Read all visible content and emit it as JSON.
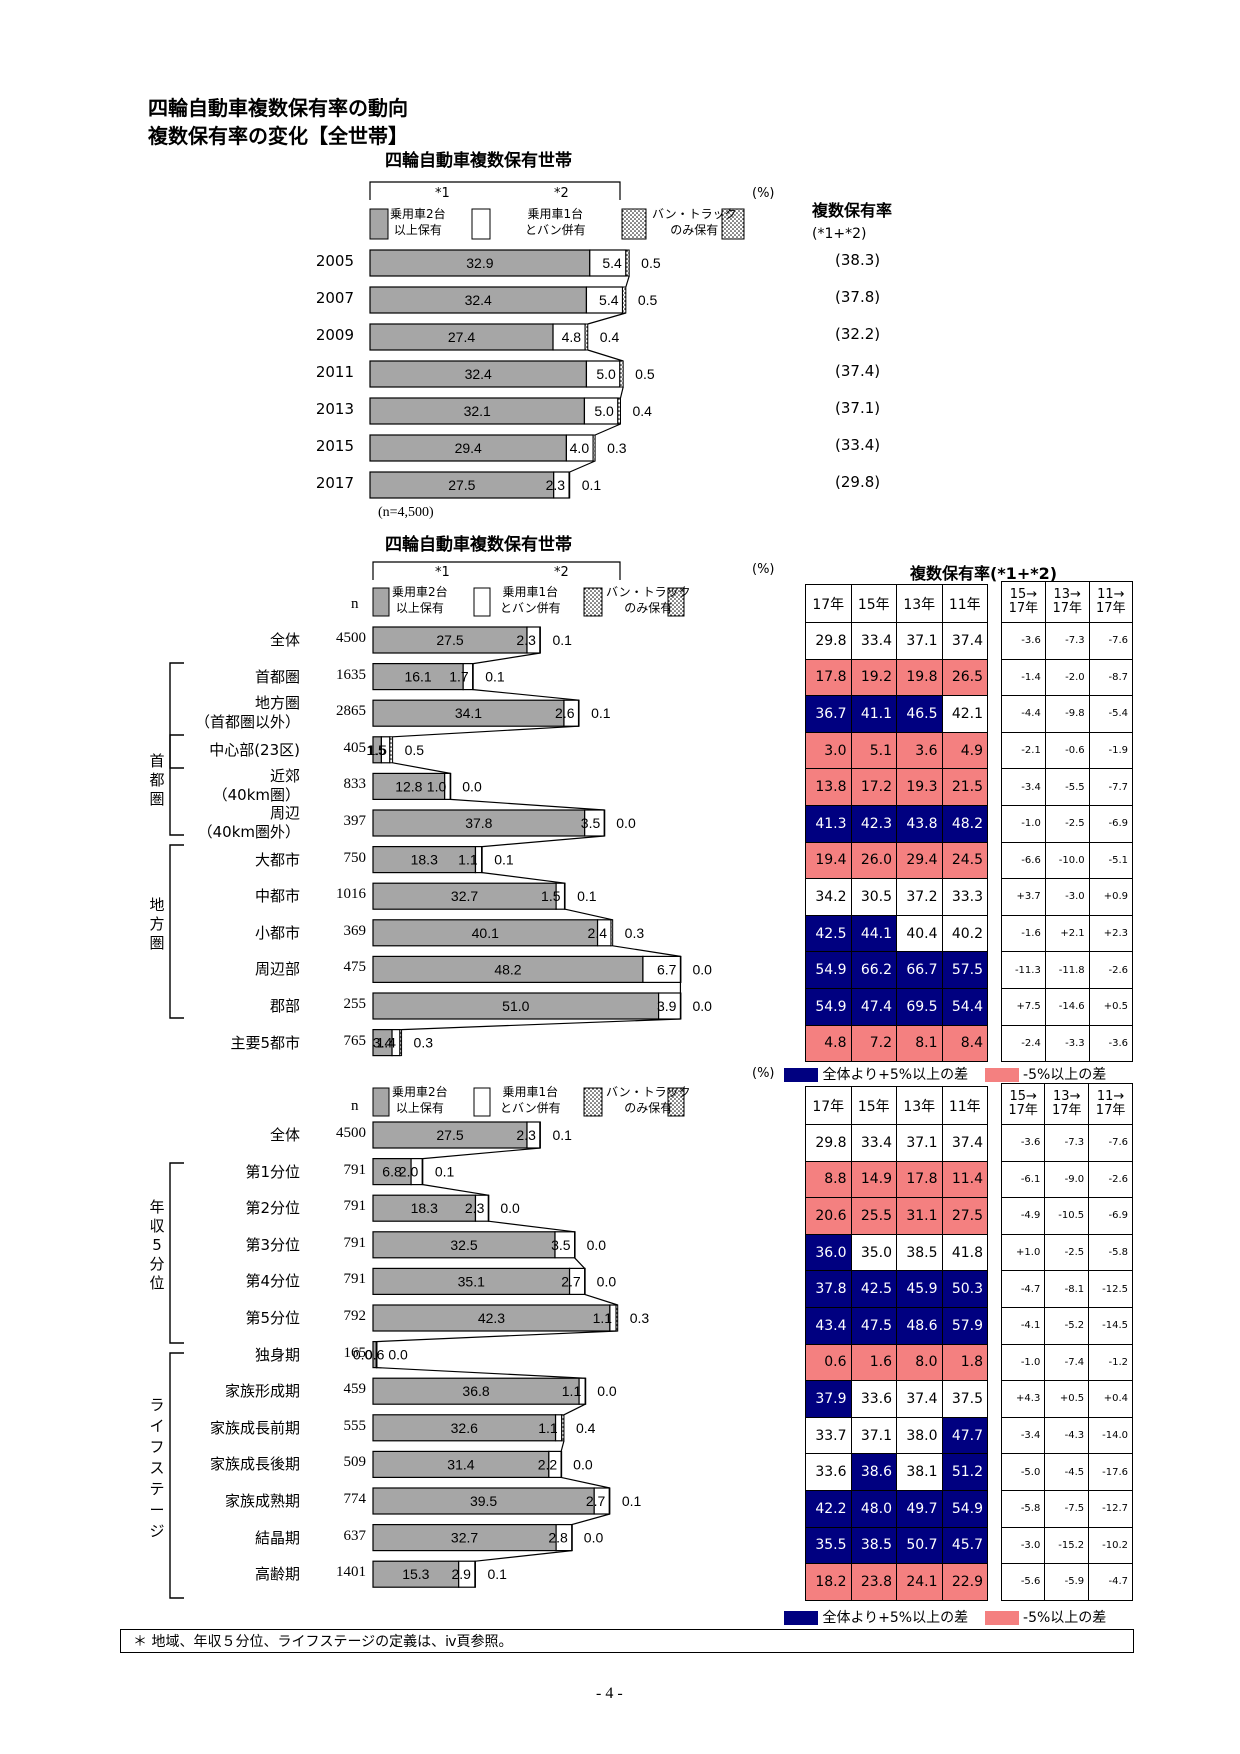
{
  "title1": "四輪自動車複数保有率の動向",
  "title2": "複数保有率の変化【全世帯】",
  "section_title": "四輪自動車複数保有世帯",
  "star1": "*1",
  "star2": "*2",
  "pct_unit": "(%)",
  "legend": {
    "gray": [
      "乗用車2台",
      "以上保有"
    ],
    "white": [
      "乗用車1台",
      "とバン併有"
    ],
    "dot": [
      "バン・トラック",
      "のみ保有"
    ]
  },
  "rate_header": [
    "複数保有率",
    "(*1+*2)"
  ],
  "rate_header_inline": "複数保有率(*1+*2)",
  "n_label": "n",
  "n_note": "(n=4,500)",
  "col_years": [
    "17年",
    "15年",
    "13年",
    "11年"
  ],
  "diff_headers": [
    [
      "15→",
      "17年"
    ],
    [
      "13→",
      "17年"
    ],
    [
      "11→",
      "17年"
    ]
  ],
  "table_legend": {
    "blue": "全体より+5%以上の差",
    "pink": "-5%以上の差"
  },
  "group_labels": {
    "shutoken": "首都圏",
    "chiho": "地方圏",
    "nenshu": "年収5分位",
    "life": "ライフステージ"
  },
  "footer": "＊ 地域、年収５分位、ライフステージの定義は、ⅳ頁参照。",
  "page_number": "- 4 -",
  "colors": {
    "gray": "#A6A6A6",
    "blue": "#000080",
    "pink": "#F48080"
  },
  "chart_data": [
    {
      "type": "bar",
      "title": "四輪自動車複数保有世帯",
      "categories": [
        "2005",
        "2007",
        "2009",
        "2011",
        "2013",
        "2015",
        "2017"
      ],
      "series": [
        {
          "name": "乗用車2台以上保有",
          "values": [
            32.9,
            32.4,
            27.4,
            32.4,
            32.1,
            29.4,
            27.5
          ]
        },
        {
          "name": "乗用車1台とバン併有",
          "values": [
            5.4,
            5.4,
            4.8,
            5.0,
            5.0,
            4.0,
            2.3
          ]
        },
        {
          "name": "バン・トラックのみ保有",
          "values": [
            0.5,
            0.5,
            0.4,
            0.5,
            0.4,
            0.3,
            0.1
          ]
        }
      ],
      "rate": [
        "(38.3)",
        "(37.8)",
        "(32.2)",
        "(37.4)",
        "(37.1)",
        "(33.4)",
        "(29.8)"
      ],
      "ylabel": "(%)"
    },
    {
      "type": "bar",
      "title": "四輪自動車複数保有世帯",
      "rows": [
        {
          "label": "全体",
          "n": "4500",
          "v": [
            27.5,
            2.3,
            0.1
          ],
          "rates": [
            "29.8",
            "33.4",
            "37.1",
            "37.4"
          ],
          "c": [
            "",
            "",
            "",
            ""
          ],
          "diffs": [
            "-3.6",
            "-7.3",
            "-7.6"
          ]
        },
        {
          "label": "首都圏",
          "n": "1635",
          "v": [
            16.1,
            1.7,
            0.1
          ],
          "rates": [
            "17.8",
            "19.2",
            "19.8",
            "26.5"
          ],
          "c": [
            "p",
            "p",
            "p",
            "p"
          ],
          "diffs": [
            "-1.4",
            "-2.0",
            "-8.7"
          ]
        },
        {
          "label": "地方圏",
          "label2": "（首都圏以外）",
          "n": "2865",
          "v": [
            34.1,
            2.6,
            0.1
          ],
          "rates": [
            "36.7",
            "41.1",
            "46.5",
            "42.1"
          ],
          "c": [
            "b",
            "b",
            "b",
            ""
          ],
          "diffs": [
            "-4.4",
            "-9.8",
            "-5.4"
          ]
        },
        {
          "label": "中心部(23区)",
          "n": "405",
          "v": [
            1.5,
            1.5,
            0.5
          ],
          "rates": [
            "3.0",
            "5.1",
            "3.6",
            "4.9"
          ],
          "c": [
            "p",
            "p",
            "p",
            "p"
          ],
          "diffs": [
            "-2.1",
            "-0.6",
            "-1.9"
          ]
        },
        {
          "label": "近郊",
          "label2": "（40km圏）",
          "n": "833",
          "v": [
            12.8,
            1.0,
            0.0
          ],
          "rates": [
            "13.8",
            "17.2",
            "19.3",
            "21.5"
          ],
          "c": [
            "p",
            "p",
            "p",
            "p"
          ],
          "diffs": [
            "-3.4",
            "-5.5",
            "-7.7"
          ]
        },
        {
          "label": "周辺",
          "label2": "（40km圏外）",
          "n": "397",
          "v": [
            37.8,
            3.5,
            0.0
          ],
          "rates": [
            "41.3",
            "42.3",
            "43.8",
            "48.2"
          ],
          "c": [
            "b",
            "b",
            "b",
            "b"
          ],
          "diffs": [
            "-1.0",
            "-2.5",
            "-6.9"
          ]
        },
        {
          "label": "大都市",
          "n": "750",
          "v": [
            18.3,
            1.1,
            0.1
          ],
          "rates": [
            "19.4",
            "26.0",
            "29.4",
            "24.5"
          ],
          "c": [
            "p",
            "p",
            "p",
            "p"
          ],
          "diffs": [
            "-6.6",
            "-10.0",
            "-5.1"
          ]
        },
        {
          "label": "中都市",
          "n": "1016",
          "v": [
            32.7,
            1.5,
            0.1
          ],
          "rates": [
            "34.2",
            "30.5",
            "37.2",
            "33.3"
          ],
          "c": [
            "",
            "",
            "",
            ""
          ],
          "diffs": [
            "+3.7",
            "-3.0",
            "+0.9"
          ]
        },
        {
          "label": "小都市",
          "n": "369",
          "v": [
            40.1,
            2.4,
            0.3
          ],
          "rates": [
            "42.5",
            "44.1",
            "40.4",
            "40.2"
          ],
          "c": [
            "b",
            "b",
            "",
            ""
          ],
          "diffs": [
            "-1.6",
            "+2.1",
            "+2.3"
          ]
        },
        {
          "label": "周辺部",
          "n": "475",
          "v": [
            48.2,
            6.7,
            0.0
          ],
          "rates": [
            "54.9",
            "66.2",
            "66.7",
            "57.5"
          ],
          "c": [
            "b",
            "b",
            "b",
            "b"
          ],
          "diffs": [
            "-11.3",
            "-11.8",
            "-2.6"
          ]
        },
        {
          "label": "郡部",
          "n": "255",
          "v": [
            51.0,
            3.9,
            0.0
          ],
          "rates": [
            "54.9",
            "47.4",
            "69.5",
            "54.4"
          ],
          "c": [
            "b",
            "b",
            "b",
            "b"
          ],
          "diffs": [
            "+7.5",
            "-14.6",
            "+0.5"
          ]
        },
        {
          "label": "主要5都市",
          "n": "765",
          "v": [
            3.4,
            1.4,
            0.3
          ],
          "rates": [
            "4.8",
            "7.2",
            "8.1",
            "8.4"
          ],
          "c": [
            "p",
            "p",
            "p",
            "p"
          ],
          "diffs": [
            "-2.4",
            "-3.3",
            "-3.6"
          ]
        }
      ]
    },
    {
      "type": "bar",
      "rows": [
        {
          "label": "全体",
          "n": "4500",
          "v": [
            27.5,
            2.3,
            0.1
          ],
          "rates": [
            "29.8",
            "33.4",
            "37.1",
            "37.4"
          ],
          "c": [
            "",
            "",
            "",
            ""
          ],
          "diffs": [
            "-3.6",
            "-7.3",
            "-7.6"
          ]
        },
        {
          "label": "第1分位",
          "n": "791",
          "v": [
            6.8,
            2.0,
            0.1
          ],
          "rates": [
            "8.8",
            "14.9",
            "17.8",
            "11.4"
          ],
          "c": [
            "p",
            "p",
            "p",
            "p"
          ],
          "diffs": [
            "-6.1",
            "-9.0",
            "-2.6"
          ]
        },
        {
          "label": "第2分位",
          "n": "791",
          "v": [
            18.3,
            2.3,
            0.0
          ],
          "rates": [
            "20.6",
            "25.5",
            "31.1",
            "27.5"
          ],
          "c": [
            "p",
            "p",
            "p",
            "p"
          ],
          "diffs": [
            "-4.9",
            "-10.5",
            "-6.9"
          ]
        },
        {
          "label": "第3分位",
          "n": "791",
          "v": [
            32.5,
            3.5,
            0.0
          ],
          "rates": [
            "36.0",
            "35.0",
            "38.5",
            "41.8"
          ],
          "c": [
            "b",
            "",
            "",
            ""
          ],
          "diffs": [
            "+1.0",
            "-2.5",
            "-5.8"
          ]
        },
        {
          "label": "第4分位",
          "n": "791",
          "v": [
            35.1,
            2.7,
            0.0
          ],
          "rates": [
            "37.8",
            "42.5",
            "45.9",
            "50.3"
          ],
          "c": [
            "b",
            "b",
            "b",
            "b"
          ],
          "diffs": [
            "-4.7",
            "-8.1",
            "-12.5"
          ]
        },
        {
          "label": "第5分位",
          "n": "792",
          "v": [
            42.3,
            1.1,
            0.3
          ],
          "rates": [
            "43.4",
            "47.5",
            "48.6",
            "57.9"
          ],
          "c": [
            "b",
            "b",
            "b",
            "b"
          ],
          "diffs": [
            "-4.1",
            "-5.2",
            "-14.5"
          ]
        },
        {
          "label": "独身期",
          "n": "165",
          "v": [
            0.6,
            0.0,
            0.0
          ],
          "rates": [
            "0.6",
            "1.6",
            "8.0",
            "1.8"
          ],
          "c": [
            "p",
            "p",
            "p",
            "p"
          ],
          "diffs": [
            "-1.0",
            "-7.4",
            "-1.2"
          ]
        },
        {
          "label": "家族形成期",
          "n": "459",
          "v": [
            36.8,
            1.1,
            0.0
          ],
          "rates": [
            "37.9",
            "33.6",
            "37.4",
            "37.5"
          ],
          "c": [
            "b",
            "",
            "",
            ""
          ],
          "diffs": [
            "+4.3",
            "+0.5",
            "+0.4"
          ]
        },
        {
          "label": "家族成長前期",
          "n": "555",
          "v": [
            32.6,
            1.1,
            0.4
          ],
          "rates": [
            "33.7",
            "37.1",
            "38.0",
            "47.7"
          ],
          "c": [
            "",
            "",
            "",
            "b"
          ],
          "diffs": [
            "-3.4",
            "-4.3",
            "-14.0"
          ]
        },
        {
          "label": "家族成長後期",
          "n": "509",
          "v": [
            31.4,
            2.2,
            0.0
          ],
          "rates": [
            "33.6",
            "38.6",
            "38.1",
            "51.2"
          ],
          "c": [
            "",
            "b",
            "",
            "b"
          ],
          "diffs": [
            "-5.0",
            "-4.5",
            "-17.6"
          ]
        },
        {
          "label": "家族成熟期",
          "n": "774",
          "v": [
            39.5,
            2.7,
            0.1
          ],
          "rates": [
            "42.2",
            "48.0",
            "49.7",
            "54.9"
          ],
          "c": [
            "b",
            "b",
            "b",
            "b"
          ],
          "diffs": [
            "-5.8",
            "-7.5",
            "-12.7"
          ]
        },
        {
          "label": "結晶期",
          "n": "637",
          "v": [
            32.7,
            2.8,
            0.0
          ],
          "rates": [
            "35.5",
            "38.5",
            "50.7",
            "45.7"
          ],
          "c": [
            "b",
            "b",
            "b",
            "b"
          ],
          "diffs": [
            "-3.0",
            "-15.2",
            "-10.2"
          ]
        },
        {
          "label": "高齢期",
          "n": "1401",
          "v": [
            15.3,
            2.9,
            0.1
          ],
          "rates": [
            "18.2",
            "23.8",
            "24.1",
            "22.9"
          ],
          "c": [
            "p",
            "p",
            "p",
            "p"
          ],
          "diffs": [
            "-5.6",
            "-5.9",
            "-4.7"
          ]
        }
      ]
    }
  ]
}
